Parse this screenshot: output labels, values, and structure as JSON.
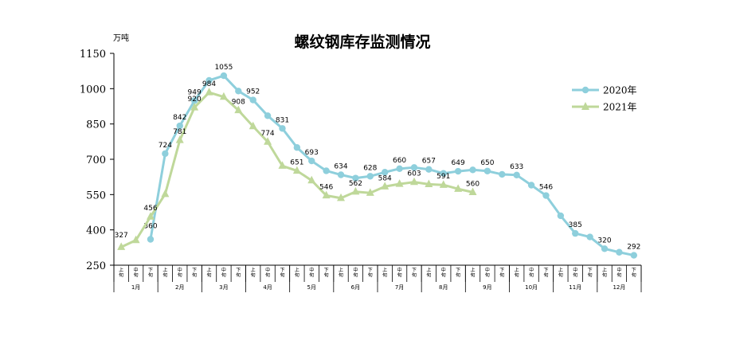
{
  "chart_data": {
    "type": "line",
    "title": "螺纹钢库存监测情况",
    "yunit": "万吨",
    "ylim": [
      250,
      1150
    ],
    "yticks": [
      250,
      400,
      550,
      700,
      850,
      1000,
      1150
    ],
    "legend_position": "right",
    "grid": false,
    "months": [
      "1月",
      "2月",
      "3月",
      "4月",
      "5月",
      "6月",
      "7月",
      "8月",
      "9月",
      "10月",
      "11月",
      "12月"
    ],
    "periods": [
      "上旬",
      "中旬",
      "下旬"
    ],
    "series": [
      {
        "name": "2020年",
        "color": "#8ecfdc",
        "marker": "circle",
        "values": [
          null,
          null,
          360,
          724,
          842,
          949,
          1035,
          1055,
          990,
          952,
          885,
          831,
          750,
          693,
          651,
          634,
          620,
          628,
          645,
          660,
          665,
          657,
          640,
          649,
          655,
          650,
          636,
          633,
          590,
          546,
          460,
          385,
          370,
          320,
          305,
          292
        ],
        "labels": [
          null,
          null,
          "360",
          "724",
          "842",
          "949",
          null,
          "1055",
          null,
          "952",
          null,
          "831",
          null,
          "693",
          null,
          "634",
          null,
          "628",
          null,
          "660",
          null,
          "657",
          null,
          "649",
          null,
          "650",
          null,
          "633",
          null,
          "546",
          null,
          "385",
          null,
          "320",
          null,
          "292"
        ]
      },
      {
        "name": "2021年",
        "color": "#bfd89a",
        "marker": "triangle",
        "values": [
          327,
          356,
          456,
          552,
          781,
          920,
          984,
          965,
          908,
          840,
          774,
          672,
          651,
          610,
          546,
          535,
          562,
          557,
          584,
          595,
          603,
          594,
          591,
          574,
          560
        ],
        "labels": [
          "327",
          null,
          "456",
          null,
          "781",
          "920",
          "984",
          null,
          "908",
          null,
          "774",
          null,
          "651",
          null,
          "546",
          null,
          "562",
          null,
          "584",
          null,
          "603",
          null,
          "591",
          null,
          "560"
        ]
      }
    ]
  }
}
